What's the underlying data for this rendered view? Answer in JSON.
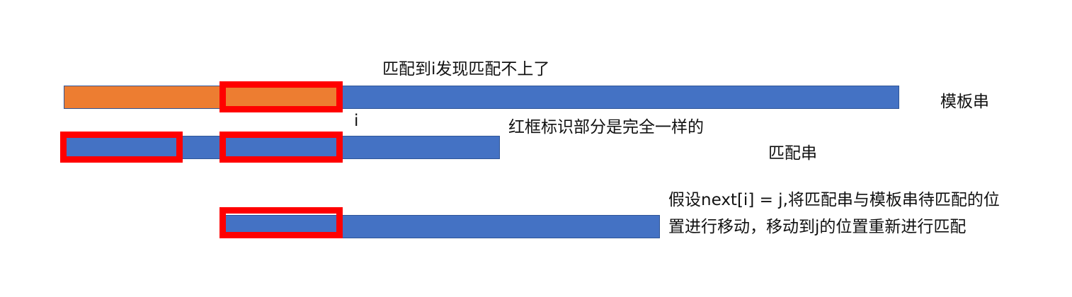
{
  "labels": {
    "mismatch_note": "匹配到i发现匹配不上了",
    "template_string": "模板串",
    "index_i": "i",
    "red_box_note": "红框标识部分是完全一样的",
    "pattern_string": "匹配串",
    "shift_note_line1": "假设next[i] = j,将匹配串与模板串待匹配的位",
    "shift_note_line2": "置进行移动，移动到j的位置重新进行匹配"
  },
  "colors": {
    "blue": "#4472c4",
    "orange": "#ed7d31",
    "red": "#ff0000"
  }
}
